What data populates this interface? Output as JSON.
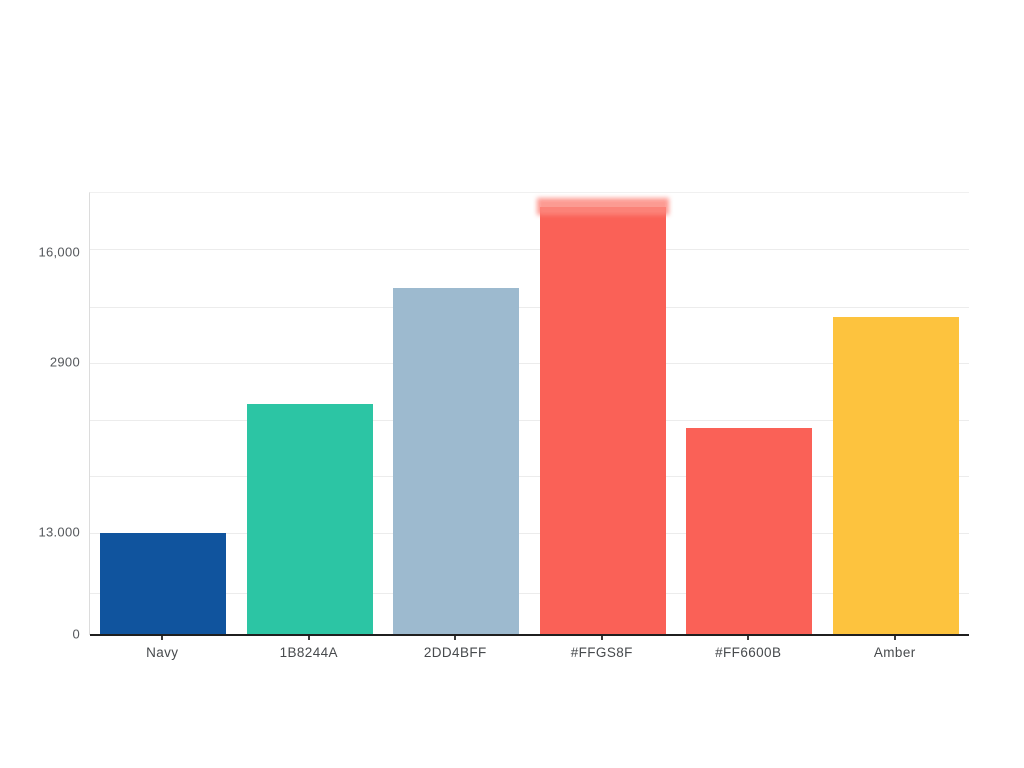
{
  "chart_data": {
    "type": "bar",
    "title": "",
    "xlabel": "",
    "ylabel": "",
    "legend": "none",
    "grid": "horizontal",
    "background_color": "#ffffff",
    "axis_line_color": "#1f1f1f",
    "gridline_color": "#ececec",
    "plot_left_border_color": "#dcdcdc",
    "tick_text_color": "#55585c",
    "categories": [
      "Navy",
      "1B8244A",
      "2DD4BFF",
      "#FFGS8F",
      "#FF6600B",
      "Amber"
    ],
    "bars": [
      {
        "label": "Navy",
        "color": "#10549e",
        "height_frac": 0.231,
        "cap": false
      },
      {
        "label": "1B8244A",
        "color": "#2cc5a4",
        "height_frac": 0.523,
        "cap": false
      },
      {
        "label": "2DD4BFF",
        "color": "#9dbacf",
        "height_frac": 0.785,
        "cap": false
      },
      {
        "label": "#FFGS8F",
        "color": "#fa6157",
        "height_frac": 0.968,
        "cap": true,
        "cap_color": "#fc8a80"
      },
      {
        "label": "#FF6600B",
        "color": "#fa6157",
        "height_frac": 0.468,
        "cap": false
      },
      {
        "label": "Amber",
        "color": "#fdc33e",
        "height_frac": 0.719,
        "cap": false
      }
    ],
    "y_ticks": [
      {
        "label": "16,000",
        "frac_from_top": 0.136
      },
      {
        "label": "2900",
        "frac_from_top": 0.385
      },
      {
        "label": "13.000",
        "frac_from_top": 0.769
      },
      {
        "label": "0",
        "frac_from_top": 1.0
      }
    ],
    "gridline_fracs_from_top": [
      0.127,
      0.258,
      0.385,
      0.514,
      0.64,
      0.769,
      0.905
    ]
  }
}
